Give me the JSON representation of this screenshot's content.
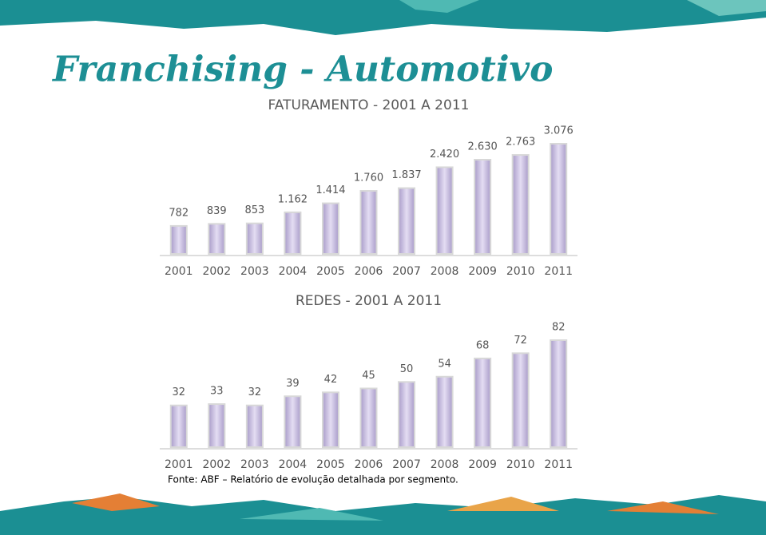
{
  "title": "Franchising - Automotivo",
  "source": "Fonte: ABF – Relatório de evolução detalhada por segmento.",
  "chart_data": [
    {
      "type": "bar",
      "title": "FATURAMENTO - 2001 A 2011",
      "categories": [
        "2001",
        "2002",
        "2003",
        "2004",
        "2005",
        "2006",
        "2007",
        "2008",
        "2009",
        "2010",
        "2011"
      ],
      "values": [
        782,
        839,
        853,
        1162,
        1414,
        1760,
        1837,
        2420,
        2630,
        2763,
        3076
      ],
      "value_labels": [
        "782",
        "839",
        "853",
        "1.162",
        "1.414",
        "1.760",
        "1.837",
        "2.420",
        "2.630",
        "2.763",
        "3.076"
      ],
      "color": "#cdc3e6"
    },
    {
      "type": "bar",
      "title": "REDES - 2001 A 2011",
      "categories": [
        "2001",
        "2002",
        "2003",
        "2004",
        "2005",
        "2006",
        "2007",
        "2008",
        "2009",
        "2010",
        "2011"
      ],
      "values": [
        32,
        33,
        32,
        39,
        42,
        45,
        50,
        54,
        68,
        72,
        82
      ],
      "color": "#cdc3e6"
    }
  ]
}
